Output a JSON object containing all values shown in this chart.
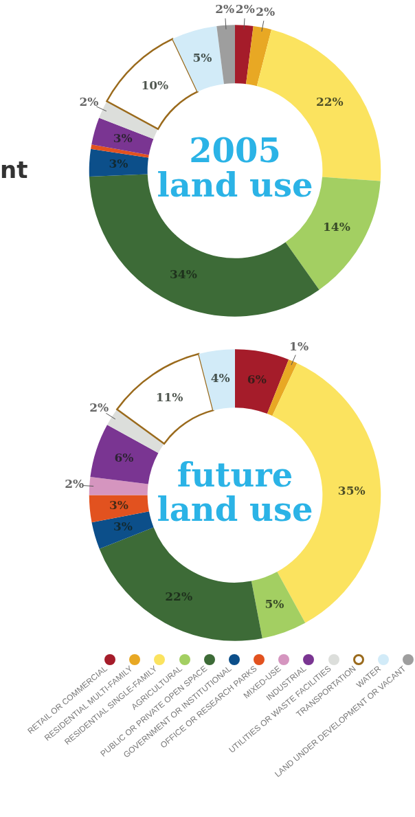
{
  "chart_data": [
    {
      "type": "donut",
      "title": "2005 land use",
      "categories": [
        null,
        null,
        null,
        null,
        null,
        null,
        null,
        null,
        null,
        null,
        null,
        null,
        null
      ],
      "values": [
        2,
        2,
        22,
        14,
        34,
        3,
        0.5,
        0,
        3,
        2,
        10,
        5,
        2
      ],
      "value_labels": [
        "2%",
        "2%",
        "22%",
        "14%",
        "34%",
        "3%",
        null,
        null,
        "3%",
        "2%",
        "10%",
        "5%",
        "2%"
      ],
      "colors": [
        "#a51c2a",
        "#e8a824",
        "#fbe35f",
        "#a3cf62",
        "#3d6b37",
        "#0c4f8a",
        "#e2521f",
        "#d595bf",
        "#7a3592",
        "#dcdedb",
        "#ffffff",
        "#d2ebf8",
        "#9e9e9e"
      ],
      "annotations": [
        "nt"
      ],
      "legend": false
    },
    {
      "type": "donut",
      "title": "future land use",
      "categories": [
        "RETAIL OR COMMERCIAL",
        "RESIDENTIAL MULTI-FAMILY",
        "RESIDENTIAL SINGLE-FAMILY",
        "AGRICULTURAL",
        "PUBLIC OR PRIVATE OPEN SPACE",
        "GOVERNMENT OR INSTITUTIONAL",
        "OFFICE OR RESEARCH PARKS",
        "MIXED-USE",
        "INDUSTRIAL",
        "UTILITIES OR WASTE FACILITIES",
        "TRANSPORTATION",
        "WATER",
        "LAND UNDER DEVELOPMENT OR VACANT"
      ],
      "values": [
        6,
        1,
        35,
        5,
        22,
        3,
        3,
        2,
        6,
        2,
        11,
        4,
        0
      ],
      "value_labels": [
        "6%",
        "1%",
        "35%",
        "5%",
        "22%",
        "3%",
        "3%",
        "2%",
        "6%",
        "2%",
        "11%",
        "4%",
        null
      ],
      "colors": [
        "#a51c2a",
        "#e8a824",
        "#fbe35f",
        "#a3cf62",
        "#3d6b37",
        "#0c4f8a",
        "#e2521f",
        "#d595bf",
        "#7a3592",
        "#dcdedb",
        "#ffffff",
        "#d2ebf8",
        "#9e9e9e"
      ],
      "legend": "bottom"
    }
  ]
}
